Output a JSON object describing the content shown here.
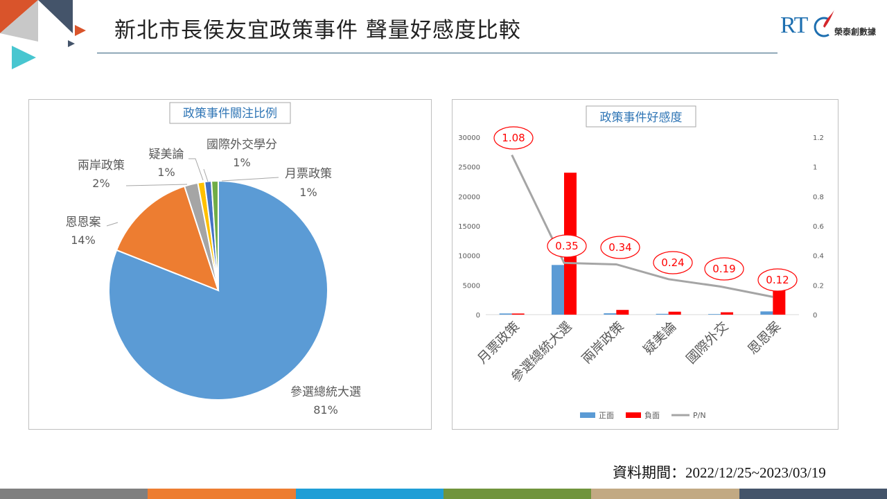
{
  "slide": {
    "title": "新北市長侯友宜政策事件 聲量好感度比較",
    "date_range": "資料期間：2022/12/25~2023/03/19"
  },
  "logo": {
    "letters": "RTC",
    "text": "榮泰創數據",
    "color": "#1e6fb0",
    "accent": "#d4262b"
  },
  "footer_colors": [
    "#7f7f7f",
    "#ed7d31",
    "#1f9ed6",
    "#70943c",
    "#c2a983",
    "#44546a"
  ],
  "decor_colors": [
    "#d9542b",
    "#44546a",
    "#a5a5a5",
    "#48c6d0",
    "#e8e8e8"
  ],
  "chart_data": [
    {
      "type": "pie",
      "title": "政策事件關注比例",
      "slices": [
        {
          "label": "參選總統大選",
          "value": 81,
          "pct_label": "81%",
          "color": "#5b9bd5"
        },
        {
          "label": "恩恩案",
          "value": 14,
          "pct_label": "14%",
          "color": "#ed7d31"
        },
        {
          "label": "兩岸政策",
          "value": 2,
          "pct_label": "2%",
          "color": "#a5a5a5"
        },
        {
          "label": "疑美論",
          "value": 1,
          "pct_label": "1%",
          "color": "#ffc000"
        },
        {
          "label": "國際外交學分",
          "value": 1,
          "pct_label": "1%",
          "color": "#4472c4"
        },
        {
          "label": "月票政策",
          "value": 1,
          "pct_label": "1%",
          "color": "#70ad47"
        }
      ]
    },
    {
      "type": "bar",
      "title": "政策事件好感度",
      "categories": [
        "月票政策",
        "參選總統大選",
        "兩岸政策",
        "疑美論",
        "國際外交",
        "恩恩案"
      ],
      "series": [
        {
          "name": "正面",
          "color": "#5b9bd5",
          "axis": "left",
          "values": [
            200,
            8400,
            230,
            140,
            100,
            550
          ]
        },
        {
          "name": "負面",
          "color": "#ff0000",
          "axis": "left",
          "values": [
            190,
            24000,
            800,
            500,
            400,
            4500
          ]
        },
        {
          "name": "P/N",
          "type": "line",
          "color": "#a5a5a5",
          "axis": "right",
          "values": [
            1.08,
            0.35,
            0.34,
            0.24,
            0.19,
            0.12
          ]
        }
      ],
      "pn_labels": [
        "1.08",
        "0.35",
        "0.34",
        "0.24",
        "0.19",
        "0.12"
      ],
      "ylim_left": [
        0,
        30000
      ],
      "ylim_right": [
        0,
        1.2
      ],
      "left_ticks": [
        "0",
        "5000",
        "10000",
        "15000",
        "20000",
        "25000",
        "30000"
      ],
      "right_ticks": [
        "0",
        "0.2",
        "0.4",
        "0.6",
        "0.8",
        "1",
        "1.2"
      ],
      "legend_position": "bottom",
      "grid": false
    }
  ]
}
